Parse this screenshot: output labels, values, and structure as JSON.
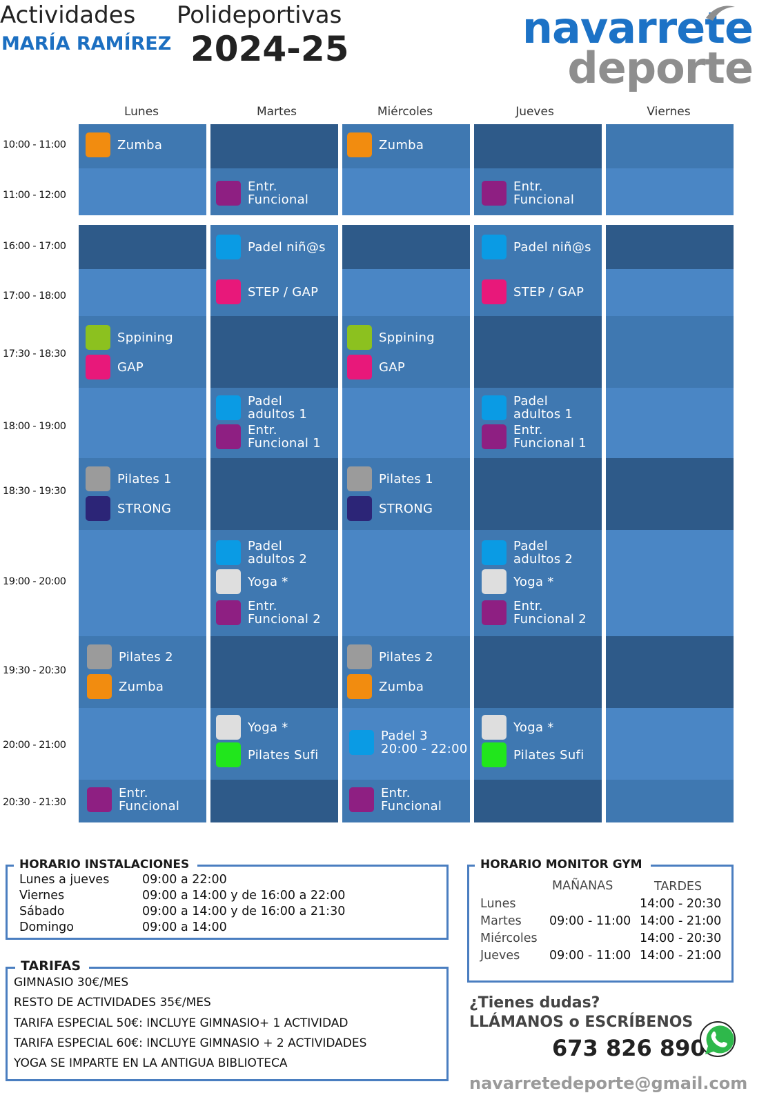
{
  "header": {
    "title_a": "Actividades",
    "title_b": "Polideportivas",
    "name": "MARÍA RAMÍREZ",
    "year": "2024-25",
    "logo_top": "navarrete",
    "logo_bottom": "deporte"
  },
  "days": [
    "Lunes",
    "Martes",
    "Miércoles",
    "Jueves",
    "Viernes"
  ],
  "times": [
    "10:00 - 11:00",
    "11:00 - 12:00",
    "16:00 - 17:00",
    "17:00 - 18:00",
    "17:30 - 18:30",
    "18:00 - 19:00",
    "18:30 - 19:30",
    "19:00 - 20:00",
    "19:30 - 20:30",
    "20:00 - 21:00",
    "20:30 - 21:30"
  ],
  "colors": {
    "zumba": "#f28c0f",
    "funcional": "#8e1f82",
    "padel": "#0a9be4",
    "step": "#e8187a",
    "spinning": "#8cc11f",
    "gap": "#e8187a",
    "pilates": "#9b9b9b",
    "strong": "#2c2577",
    "yoga": "#dedede",
    "pilates_sufi": "#21e61c"
  },
  "activities": [
    {
      "label": "Zumba",
      "color": "#f28c0f"
    },
    {
      "label": "Zumba",
      "color": "#f28c0f"
    },
    {
      "label": "Entr.\nFuncional",
      "color": "#8e1f82"
    },
    {
      "label": "Entr.\nFuncional",
      "color": "#8e1f82"
    },
    {
      "label": "Padel niñ@s",
      "color": "#0a9be4"
    },
    {
      "label": "Padel niñ@s",
      "color": "#0a9be4"
    },
    {
      "label": "STEP / GAP",
      "color": "#e8187a"
    },
    {
      "label": "STEP / GAP",
      "color": "#e8187a"
    },
    {
      "label": "Sppining",
      "color": "#8cc11f"
    },
    {
      "label": "GAP",
      "color": "#e8187a"
    },
    {
      "label": "Sppining",
      "color": "#8cc11f"
    },
    {
      "label": "GAP",
      "color": "#e8187a"
    },
    {
      "label": "Padel\nadultos 1",
      "color": "#0a9be4"
    },
    {
      "label": "Entr.\nFuncional 1",
      "color": "#8e1f82"
    },
    {
      "label": "Padel\nadultos 1",
      "color": "#0a9be4"
    },
    {
      "label": "Entr.\nFuncional 1",
      "color": "#8e1f82"
    },
    {
      "label": "Pilates 1",
      "color": "#9b9b9b"
    },
    {
      "label": "STRONG",
      "color": "#2c2577"
    },
    {
      "label": "Pilates 1",
      "color": "#9b9b9b"
    },
    {
      "label": "STRONG",
      "color": "#2c2577"
    },
    {
      "label": "Padel\nadultos 2",
      "color": "#0a9be4"
    },
    {
      "label": "Yoga *",
      "color": "#dedede"
    },
    {
      "label": "Entr.\nFuncional 2",
      "color": "#8e1f82"
    },
    {
      "label": "Padel\nadultos 2",
      "color": "#0a9be4"
    },
    {
      "label": "Yoga *",
      "color": "#dedede"
    },
    {
      "label": "Entr.\nFuncional 2",
      "color": "#8e1f82"
    },
    {
      "label": "Pilates 2",
      "color": "#9b9b9b"
    },
    {
      "label": "Zumba",
      "color": "#f28c0f"
    },
    {
      "label": "Pilates 2",
      "color": "#9b9b9b"
    },
    {
      "label": "Zumba",
      "color": "#f28c0f"
    },
    {
      "label": "Yoga *",
      "color": "#dedede"
    },
    {
      "label": "Pilates Sufi",
      "color": "#21e61c"
    },
    {
      "label": "Padel 3\n20:00 - 22:00",
      "color": "#0a9be4"
    },
    {
      "label": "Yoga *",
      "color": "#dedede"
    },
    {
      "label": "Pilates Sufi",
      "color": "#21e61c"
    },
    {
      "label": "Entr.\nFuncional",
      "color": "#8e1f82"
    },
    {
      "label": "Entr.\nFuncional",
      "color": "#8e1f82"
    }
  ],
  "instalaciones": {
    "title": "HORARIO INSTALACIONES",
    "rows": [
      {
        "day": "Lunes a jueves",
        "hours": "09:00 a 22:00"
      },
      {
        "day": "Viernes",
        "hours": "09:00 a 14:00 y de 16:00 a 22:00"
      },
      {
        "day": "Sábado",
        "hours": "09:00 a 14:00 y de 16:00 a 21:30"
      },
      {
        "day": "Domingo",
        "hours": "09:00 a 14:00"
      }
    ]
  },
  "tarifas": {
    "title": "TARIFAS",
    "lines": [
      "GIMNASIO 30€/MES",
      "RESTO DE ACTIVIDADES 35€/MES",
      "TARIFA ESPECIAL 50€: INCLUYE GIMNASIO+ 1 ACTIVIDAD",
      "TARIFA ESPECIAL 60€: INCLUYE GIMNASIO + 2 ACTIVIDADES",
      "YOGA SE IMPARTE EN LA ANTIGUA BIBLIOTECA"
    ]
  },
  "monitor": {
    "title": "HORARIO MONITOR GYM",
    "col_morning": "MAÑANAS",
    "col_afternoon": "TARDES",
    "rows": [
      {
        "day": "Lunes",
        "morning": "",
        "afternoon": "14:00 - 20:30"
      },
      {
        "day": "Martes",
        "morning": "09:00 - 11:00",
        "afternoon": "14:00 - 21:00"
      },
      {
        "day": "Miércoles",
        "morning": "",
        "afternoon": "14:00 - 20:30"
      },
      {
        "day": "Jueves",
        "morning": "09:00 - 11:00",
        "afternoon": "14:00 - 21:00"
      }
    ]
  },
  "contact": {
    "question": "¿Tienes dudas?",
    "cta": "LLÁMANOS o ESCRÍBENOS",
    "phone": "673 826 890",
    "email": "navarretedeporte@gmail.com"
  }
}
